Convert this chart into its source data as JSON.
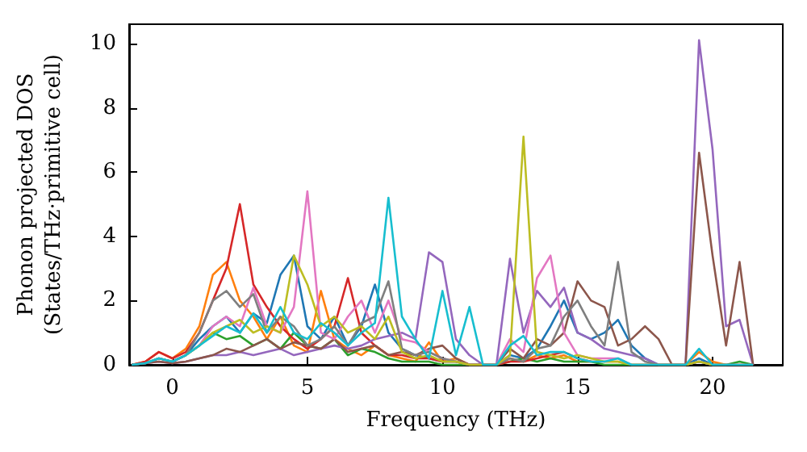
{
  "chart_data": {
    "type": "line",
    "xlabel": "Frequency (THz)",
    "ylabel": "Phonon projected DOS\n(States/THz·primitive cell)",
    "xlim": [
      -1.6,
      22.6
    ],
    "xticks": [
      0,
      5,
      10,
      15,
      20
    ],
    "ylim": [
      0,
      10.6
    ],
    "yticks": [
      0,
      2,
      4,
      6,
      8,
      10
    ],
    "x": [
      -1.5,
      -1,
      -0.5,
      0,
      0.5,
      1,
      1.5,
      2,
      2.5,
      3,
      3.5,
      4,
      4.5,
      5,
      5.5,
      6,
      6.5,
      7,
      7.5,
      8,
      8.5,
      9,
      9.5,
      10,
      10.5,
      11,
      11.5,
      12,
      12.5,
      13,
      13.5,
      14,
      14.5,
      15,
      15.5,
      16,
      16.5,
      17,
      17.5,
      18,
      18.5,
      19,
      19.5,
      20,
      20.5,
      21,
      21.5
    ],
    "series": [
      {
        "color": "#1f77b4",
        "values": [
          null,
          null,
          null,
          0.1,
          0.3,
          0.8,
          1.2,
          1.5,
          1.0,
          1.6,
          1.3,
          2.8,
          3.4,
          1.2,
          0.8,
          1.5,
          0.6,
          1.2,
          2.5,
          1.0,
          0.5,
          0.3,
          0.2,
          0.1,
          0.1,
          0,
          0,
          0,
          0.3,
          0.2,
          0.5,
          1.2,
          2.0,
          1.0,
          0.8,
          1.0,
          1.4,
          0.6,
          0.2,
          0,
          0,
          0,
          0.2,
          0,
          0,
          null,
          null
        ]
      },
      {
        "color": "#ff7f0e",
        "values": [
          0,
          0.1,
          0.4,
          0.2,
          0.5,
          1.2,
          2.8,
          3.2,
          2.0,
          1.5,
          0.8,
          1.5,
          0.6,
          0.4,
          2.3,
          0.8,
          0.5,
          0.3,
          0.6,
          0.3,
          0.2,
          0.1,
          0.7,
          0.1,
          0.2,
          0,
          0,
          0,
          0.2,
          0.1,
          0.3,
          0.2,
          0.3,
          0.1,
          0.1,
          0.1,
          0.1,
          0,
          0,
          0,
          0,
          0,
          0.4,
          0.1,
          0,
          0,
          0
        ]
      },
      {
        "color": "#2ca02c",
        "values": [
          0,
          0.05,
          0.2,
          0.1,
          0.3,
          0.6,
          1.0,
          0.8,
          0.9,
          0.6,
          0.8,
          0.5,
          1.0,
          0.6,
          0.5,
          0.8,
          0.3,
          0.5,
          0.4,
          0.2,
          0.1,
          0.1,
          0.1,
          0,
          0,
          0,
          0,
          0,
          0.1,
          0.2,
          0.1,
          0.2,
          0.1,
          0.1,
          0.1,
          0,
          0,
          0,
          0,
          0,
          0,
          0,
          0.1,
          0,
          0,
          0.1,
          0
        ]
      },
      {
        "color": "#d62728",
        "values": [
          0,
          0.1,
          0.4,
          0.2,
          0.4,
          1.0,
          2.0,
          3.0,
          5.0,
          2.5,
          1.8,
          1.2,
          0.8,
          0.5,
          0.8,
          1.2,
          2.7,
          1.0,
          0.6,
          0.3,
          0.3,
          0.2,
          0.2,
          0.1,
          0.1,
          0,
          0,
          0,
          0.1,
          0.1,
          0.2,
          0.3,
          0.4,
          0.2,
          0.1,
          null,
          null,
          null,
          null,
          null,
          null,
          null,
          null,
          null,
          null,
          null,
          null
        ]
      },
      {
        "color": "#9467bd",
        "values": [
          0,
          0.05,
          0.1,
          0.05,
          0.1,
          0.2,
          0.3,
          0.3,
          0.4,
          0.3,
          0.4,
          0.5,
          0.3,
          0.4,
          0.5,
          0.6,
          0.5,
          0.6,
          0.8,
          0.9,
          1.0,
          0.8,
          3.5,
          3.2,
          0.8,
          0.3,
          0,
          0,
          3.3,
          1.0,
          2.3,
          1.8,
          2.4,
          1.0,
          0.8,
          0.5,
          0.4,
          0.3,
          0.2,
          0,
          0,
          0,
          10.1,
          6.7,
          1.2,
          1.4,
          0
        ]
      },
      {
        "color": "#8c564b",
        "values": [
          0,
          0.05,
          0.1,
          0.05,
          0.1,
          0.2,
          0.3,
          0.5,
          0.4,
          0.6,
          0.8,
          0.5,
          0.7,
          0.6,
          0.5,
          0.8,
          0.4,
          0.5,
          0.6,
          0.3,
          0.4,
          0.3,
          0.5,
          0.6,
          0.2,
          0,
          0,
          0,
          0.5,
          0.2,
          0.8,
          0.6,
          1.0,
          2.6,
          2.0,
          1.8,
          0.6,
          0.8,
          1.2,
          0.8,
          0,
          0,
          6.6,
          3.4,
          0.6,
          3.2,
          0
        ]
      },
      {
        "color": "#e377c2",
        "values": [
          null,
          null,
          null,
          0.1,
          0.3,
          0.6,
          1.2,
          1.5,
          1.2,
          2.4,
          1.2,
          1.0,
          1.8,
          5.4,
          1.0,
          0.8,
          1.5,
          2.0,
          1.0,
          2.0,
          0.8,
          0.7,
          0.4,
          0.2,
          0.1,
          0,
          0,
          0,
          0.8,
          0.4,
          2.7,
          3.4,
          1.0,
          0.3,
          0.2,
          0.2,
          0.2,
          0,
          0,
          0,
          0,
          0,
          0.1,
          0,
          0,
          0,
          0
        ]
      },
      {
        "color": "#7f7f7f",
        "values": [
          0,
          0.05,
          0.2,
          0.1,
          0.3,
          1.0,
          2.0,
          2.3,
          1.8,
          2.2,
          1.0,
          1.5,
          1.2,
          0.6,
          0.8,
          1.2,
          0.6,
          1.3,
          1.5,
          2.6,
          0.5,
          0.3,
          0.4,
          0.2,
          0.1,
          0,
          0,
          0,
          0.2,
          0.1,
          0.5,
          0.6,
          1.5,
          2.0,
          1.2,
          0.6,
          3.2,
          0.4,
          0.1,
          0,
          0,
          0,
          0.1,
          0,
          0,
          0,
          0
        ]
      },
      {
        "color": "#bcbd22",
        "values": [
          null,
          null,
          null,
          null,
          0.3,
          0.6,
          1.0,
          1.2,
          1.4,
          1.0,
          1.2,
          1.0,
          3.4,
          2.5,
          1.2,
          1.5,
          1.0,
          1.2,
          0.8,
          1.5,
          0.4,
          0.2,
          0.3,
          0.1,
          0.1,
          0,
          0,
          0,
          0.3,
          7.1,
          0.4,
          0.3,
          0.2,
          0.3,
          0.2,
          0.1,
          0.1,
          0,
          0,
          0,
          0,
          0,
          0.1,
          0,
          0,
          null,
          null
        ]
      },
      {
        "color": "#17becf",
        "values": [
          0,
          0.05,
          0.2,
          0.1,
          0.3,
          0.6,
          0.9,
          1.2,
          1.0,
          1.6,
          1.0,
          1.8,
          1.0,
          0.8,
          1.3,
          1.0,
          0.6,
          1.0,
          1.3,
          5.2,
          1.5,
          0.8,
          0.2,
          2.3,
          0.3,
          1.8,
          0,
          0,
          0.6,
          0.9,
          0.3,
          0.4,
          0.4,
          0.2,
          0.1,
          0.1,
          0.2,
          0,
          0,
          0,
          0,
          0,
          0.5,
          0,
          0,
          0,
          0
        ]
      }
    ]
  }
}
